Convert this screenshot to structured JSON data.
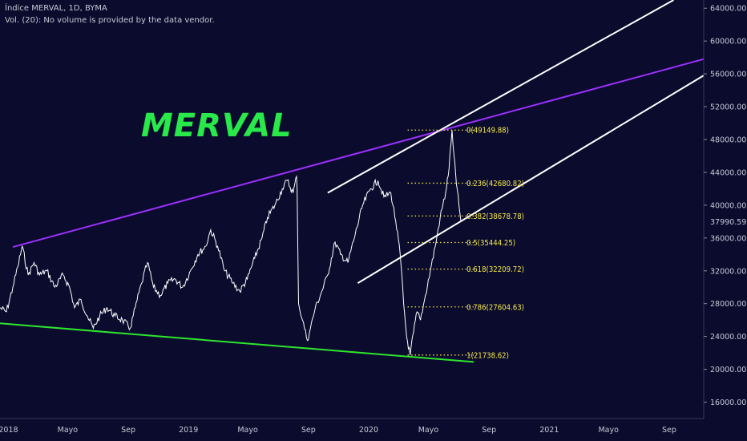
{
  "header": {
    "title": "Índice MERVAL, 1D, BYMA",
    "volume_note": "Vol. (20): No volume is provided by the data vendor."
  },
  "watermark_title": "MERVAL",
  "colors": {
    "background": "#0b0b2d",
    "price": "#ffffff",
    "upper_trendline": "#9b30ff",
    "lower_trendline": "#2ee62e",
    "channel": "#ffffff",
    "fib": "#f5e94a",
    "text": "#c8c8d8",
    "label_bg": "#0b0b2d"
  },
  "chart_data": {
    "type": "line",
    "title": "Índice MERVAL, 1D, BYMA",
    "x_axis": {
      "range": [
        "2017-12-15",
        "2021-11-10"
      ],
      "ticks": [
        {
          "date": "2018-01-01",
          "label": "2018"
        },
        {
          "date": "2018-05-01",
          "label": "Mayo"
        },
        {
          "date": "2018-09-01",
          "label": "Sep"
        },
        {
          "date": "2019-01-01",
          "label": "2019"
        },
        {
          "date": "2019-05-01",
          "label": "Mayo"
        },
        {
          "date": "2019-09-01",
          "label": "Sep"
        },
        {
          "date": "2020-01-01",
          "label": "2020"
        },
        {
          "date": "2020-05-01",
          "label": "Mayo"
        },
        {
          "date": "2020-09-01",
          "label": "Sep"
        },
        {
          "date": "2021-01-01",
          "label": "2021"
        },
        {
          "date": "2021-05-01",
          "label": "Mayo"
        },
        {
          "date": "2021-09-01",
          "label": "Sep"
        }
      ]
    },
    "y_axis": {
      "range": [
        14000,
        65000
      ],
      "ticks": [
        16000,
        20000,
        24000,
        28000,
        32000,
        36000,
        40000,
        44000,
        48000,
        52000,
        56000,
        60000,
        64000
      ],
      "tick_labels": [
        "16000.00",
        "20000.00",
        "24000.00",
        "28000.00",
        "32000.00",
        "36000.00",
        "40000.00",
        "44000.00",
        "48000.00",
        "52000.00",
        "56000.00",
        "60000.00",
        "64000.00"
      ],
      "position": "right"
    },
    "series": [
      {
        "type": "price",
        "points": [
          [
            "2017-12-15",
            27500
          ],
          [
            "2017-12-28",
            27000
          ],
          [
            "2018-01-10",
            30000
          ],
          [
            "2018-01-20",
            32500
          ],
          [
            "2018-01-29",
            35000
          ],
          [
            "2018-02-10",
            31500
          ],
          [
            "2018-02-22",
            33000
          ],
          [
            "2018-03-05",
            31500
          ],
          [
            "2018-03-20",
            32000
          ],
          [
            "2018-04-05",
            30000
          ],
          [
            "2018-04-22",
            31500
          ],
          [
            "2018-05-05",
            30000
          ],
          [
            "2018-05-15",
            27500
          ],
          [
            "2018-05-28",
            28500
          ],
          [
            "2018-06-10",
            26500
          ],
          [
            "2018-06-22",
            25000
          ],
          [
            "2018-07-05",
            26500
          ],
          [
            "2018-07-20",
            27500
          ],
          [
            "2018-08-05",
            26500
          ],
          [
            "2018-08-20",
            26000
          ],
          [
            "2018-09-05",
            25000
          ],
          [
            "2018-09-15",
            27500
          ],
          [
            "2018-09-28",
            30500
          ],
          [
            "2018-10-10",
            33000
          ],
          [
            "2018-10-22",
            30000
          ],
          [
            "2018-11-05",
            29000
          ],
          [
            "2018-11-20",
            30500
          ],
          [
            "2018-12-05",
            31000
          ],
          [
            "2018-12-20",
            30000
          ],
          [
            "2019-01-05",
            32000
          ],
          [
            "2019-01-20",
            34000
          ],
          [
            "2019-02-05",
            35000
          ],
          [
            "2019-02-15",
            37000
          ],
          [
            "2019-03-01",
            35000
          ],
          [
            "2019-03-15",
            32000
          ],
          [
            "2019-04-01",
            30500
          ],
          [
            "2019-04-15",
            29500
          ],
          [
            "2019-04-30",
            31000
          ],
          [
            "2019-05-15",
            33500
          ],
          [
            "2019-05-30",
            36000
          ],
          [
            "2019-06-10",
            38500
          ],
          [
            "2019-06-25",
            40000
          ],
          [
            "2019-07-10",
            42000
          ],
          [
            "2019-07-20",
            43000
          ],
          [
            "2019-08-01",
            41500
          ],
          [
            "2019-08-08",
            43500
          ],
          [
            "2019-08-09",
            42000
          ],
          [
            "2019-08-12",
            28000
          ],
          [
            "2019-08-20",
            26000
          ],
          [
            "2019-08-30",
            23500
          ],
          [
            "2019-09-05",
            25000
          ],
          [
            "2019-09-15",
            27500
          ],
          [
            "2019-09-25",
            29000
          ],
          [
            "2019-10-10",
            31500
          ],
          [
            "2019-10-25",
            35500
          ],
          [
            "2019-11-05",
            34000
          ],
          [
            "2019-11-20",
            33000
          ],
          [
            "2019-12-05",
            36500
          ],
          [
            "2019-12-20",
            40000
          ],
          [
            "2020-01-05",
            42000
          ],
          [
            "2020-01-20",
            43000
          ],
          [
            "2020-02-01",
            41000
          ],
          [
            "2020-02-15",
            41500
          ],
          [
            "2020-02-25",
            38000
          ],
          [
            "2020-03-05",
            34000
          ],
          [
            "2020-03-12",
            28000
          ],
          [
            "2020-03-18",
            24000
          ],
          [
            "2020-03-25",
            21738.62
          ],
          [
            "2020-04-01",
            24500
          ],
          [
            "2020-04-08",
            27000
          ],
          [
            "2020-04-15",
            26000
          ],
          [
            "2020-04-25",
            29000
          ],
          [
            "2020-05-05",
            32000
          ],
          [
            "2020-05-15",
            35000
          ],
          [
            "2020-05-25",
            38500
          ],
          [
            "2020-06-05",
            41500
          ],
          [
            "2020-06-12",
            44500
          ],
          [
            "2020-06-18",
            49149.88
          ],
          [
            "2020-06-22",
            46000
          ],
          [
            "2020-06-27",
            42500
          ],
          [
            "2020-07-02",
            40000
          ],
          [
            "2020-07-06",
            37990.59
          ]
        ]
      }
    ],
    "last_price": {
      "value": 37990.59,
      "label": "37990.59"
    },
    "trendlines": [
      {
        "name": "upper_wedge",
        "color": "purple",
        "from": [
          "2018-01-10",
          34900
        ],
        "to": [
          "2021-11-10",
          57800
        ]
      },
      {
        "name": "lower_wedge",
        "color": "green",
        "from": [
          "2017-12-15",
          25600
        ],
        "to": [
          "2020-08-01",
          20900
        ]
      },
      {
        "name": "channel_upper",
        "color": "white",
        "from": [
          "2019-10-10",
          41500
        ],
        "to": [
          "2021-09-10",
          65000
        ]
      },
      {
        "name": "channel_lower",
        "color": "white",
        "from": [
          "2019-12-10",
          30500
        ],
        "to": [
          "2021-11-10",
          55800
        ]
      }
    ],
    "fibonacci": {
      "start_date": "2020-03-20",
      "end_date": "2020-08-01",
      "levels": [
        {
          "ratio": 0,
          "value": 49149.88,
          "label": "0(49149.88)"
        },
        {
          "ratio": 0.236,
          "value": 42680.82,
          "label": "0.236(42680.82)"
        },
        {
          "ratio": 0.382,
          "value": 38678.78,
          "label": "0.382(38678.78)"
        },
        {
          "ratio": 0.5,
          "value": 35444.25,
          "label": "0.5(35444.25)"
        },
        {
          "ratio": 0.618,
          "value": 32209.72,
          "label": "0.618(32209.72)"
        },
        {
          "ratio": 0.786,
          "value": 27604.63,
          "label": "0.786(27604.63)"
        },
        {
          "ratio": 1,
          "value": 21738.62,
          "label": "1(21738.62)"
        }
      ]
    },
    "grid": false,
    "legend": "none"
  }
}
